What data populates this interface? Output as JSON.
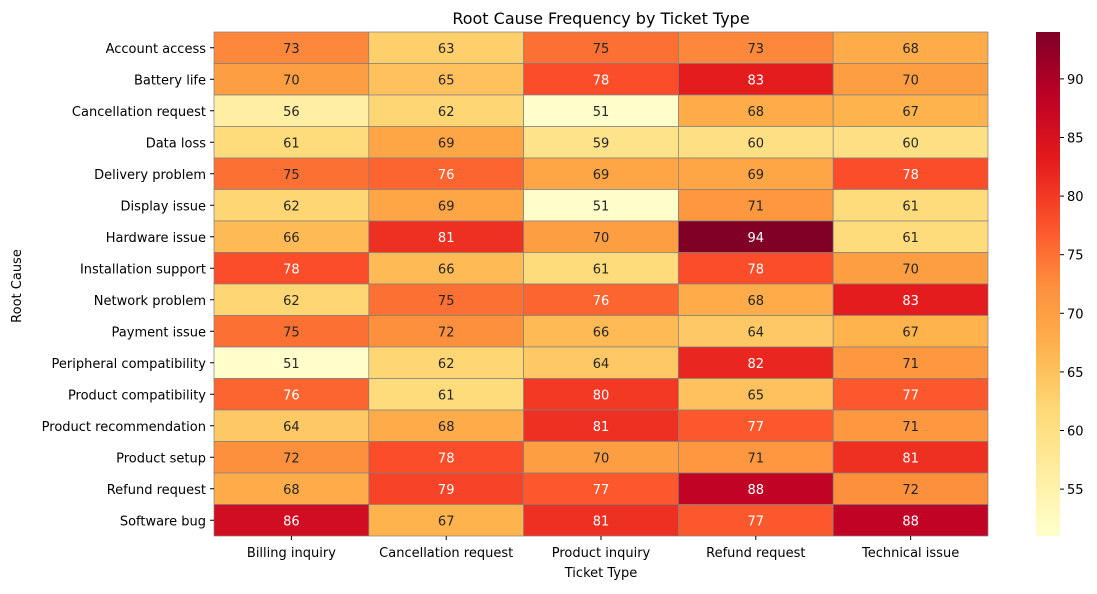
{
  "chart_data": {
    "type": "heatmap",
    "title": "Root Cause Frequency by Ticket Type",
    "xlabel": "Ticket Type",
    "ylabel": "Root Cause",
    "x_categories": [
      "Billing inquiry",
      "Cancellation request",
      "Product inquiry",
      "Refund request",
      "Technical issue"
    ],
    "y_categories": [
      "Account access",
      "Battery life",
      "Cancellation request",
      "Data loss",
      "Delivery problem",
      "Display issue",
      "Hardware issue",
      "Installation support",
      "Network problem",
      "Payment issue",
      "Peripheral compatibility",
      "Product compatibility",
      "Product recommendation",
      "Product setup",
      "Refund request",
      "Software bug"
    ],
    "values": [
      [
        73,
        63,
        75,
        73,
        68
      ],
      [
        70,
        65,
        78,
        83,
        70
      ],
      [
        56,
        62,
        51,
        68,
        67
      ],
      [
        61,
        69,
        59,
        60,
        60
      ],
      [
        75,
        76,
        69,
        69,
        78
      ],
      [
        62,
        69,
        51,
        71,
        61
      ],
      [
        66,
        81,
        70,
        94,
        61
      ],
      [
        78,
        66,
        61,
        78,
        70
      ],
      [
        62,
        75,
        76,
        68,
        83
      ],
      [
        75,
        72,
        66,
        64,
        67
      ],
      [
        51,
        62,
        64,
        82,
        71
      ],
      [
        76,
        61,
        80,
        65,
        77
      ],
      [
        64,
        68,
        81,
        77,
        71
      ],
      [
        72,
        78,
        70,
        71,
        81
      ],
      [
        68,
        79,
        77,
        88,
        72
      ],
      [
        86,
        67,
        81,
        77,
        88
      ]
    ],
    "colormap": "YlOrRd",
    "vmin": 51,
    "vmax": 94,
    "colorbar_ticks": [
      55,
      60,
      65,
      70,
      75,
      80,
      85,
      90
    ],
    "annotated": true,
    "cell_border_color": "#808080"
  }
}
